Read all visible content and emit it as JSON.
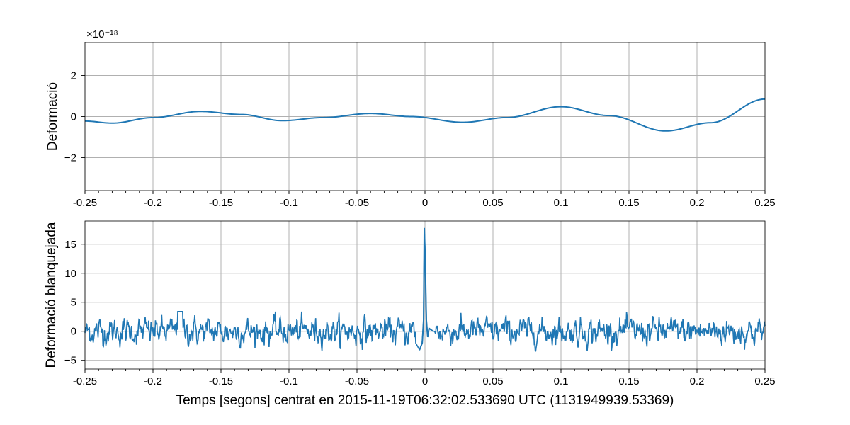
{
  "chart_data": [
    {
      "type": "line",
      "panel": "top",
      "ylabel": "Deformació",
      "xlabel": "",
      "y_exponent_label": "×10⁻¹⁸",
      "xlim": [
        -0.25,
        0.25
      ],
      "ylim": [
        -3.6,
        3.6
      ],
      "grid": true,
      "color": "#1f77b4",
      "x_ticks": [
        -0.25,
        -0.2,
        -0.15,
        -0.1,
        -0.05,
        0,
        0.05,
        0.1,
        0.15,
        0.2,
        0.25
      ],
      "x_tick_labels": [
        "-0.25",
        "-0.2",
        "-0.15",
        "-0.1",
        "-0.05",
        "0",
        "0.05",
        "0.1",
        "0.15",
        "0.2",
        "0.25"
      ],
      "y_ticks": [
        -2,
        0,
        2
      ],
      "y_tick_labels": [
        "−2",
        "0",
        "2"
      ],
      "series": [
        {
          "x": [
            -0.25,
            -0.23,
            -0.2,
            -0.165,
            -0.135,
            -0.105,
            -0.075,
            -0.04,
            -0.01,
            0.028,
            0.06,
            0.1,
            0.135,
            0.177,
            0.21,
            0.25
          ],
          "values": [
            -0.22,
            -0.32,
            -0.05,
            0.25,
            0.1,
            -0.2,
            -0.05,
            0.15,
            0.0,
            -0.28,
            -0.05,
            0.48,
            0.05,
            -0.7,
            -0.3,
            0.85
          ]
        }
      ]
    },
    {
      "type": "line",
      "panel": "bottom",
      "ylabel": "Deformació blanquejada",
      "xlabel": "Temps [segons] centrat en 2015-11-19T06:32:02.533690 UTC (1131949939.53369)",
      "xlim": [
        -0.25,
        0.25
      ],
      "ylim": [
        -6.5,
        19
      ],
      "grid": true,
      "color": "#1f77b4",
      "x_ticks": [
        -0.25,
        -0.2,
        -0.15,
        -0.1,
        -0.05,
        0,
        0.05,
        0.1,
        0.15,
        0.2,
        0.25
      ],
      "x_tick_labels": [
        "-0.25",
        "-0.2",
        "-0.15",
        "-0.1",
        "-0.05",
        "0",
        "0.05",
        "0.1",
        "0.15",
        "0.2",
        "0.25"
      ],
      "y_ticks": [
        -5,
        0,
        5,
        10,
        15
      ],
      "y_tick_labels": [
        "−5",
        "0",
        "5",
        "10",
        "15"
      ],
      "noise_amplitude": 1.2,
      "series": [
        {
          "x": [
            -0.25,
            -0.18,
            -0.008,
            -0.004,
            -0.002,
            -0.001,
            -0.0005,
            0.0,
            0.0005,
            0.001,
            0.002,
            0.003,
            0.006,
            0.25
          ],
          "values": [
            0.0,
            3.5,
            -1.5,
            -3.2,
            -2.0,
            2.0,
            17.8,
            14.0,
            8.5,
            2.0,
            -1.0,
            0.5,
            0.0,
            0.0
          ]
        }
      ]
    }
  ]
}
